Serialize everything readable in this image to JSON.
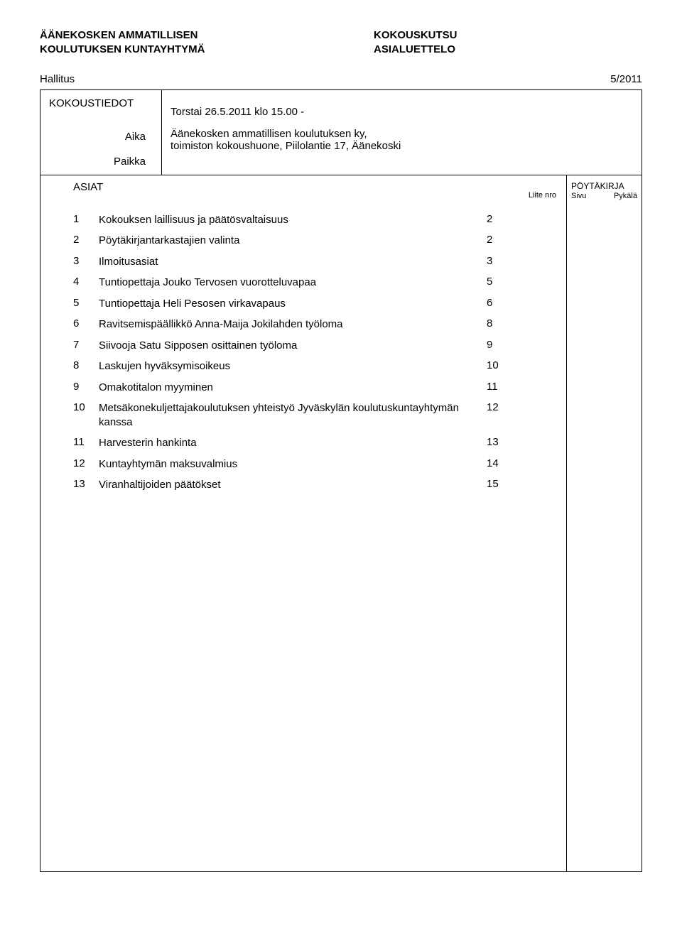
{
  "header": {
    "org_line1": "ÄÄNEKOSKEN AMMATILLISEN",
    "org_line2": "KOULUTUKSEN KUNTAYHTYMÄ",
    "doc_type_line1": "KOKOUSKUTSU",
    "doc_type_line2": "ASIALUETTELO"
  },
  "subhead": {
    "board": "Hallitus",
    "meeting_no": "5/2011"
  },
  "meeting": {
    "kokoustiedot_label": "KOKOUSTIEDOT",
    "aika_label": "Aika",
    "paikka_label": "Paikka",
    "aika_value": "Torstai 26.5.2011 klo 15.00 -",
    "paikka_value_line1": "Äänekosken ammatillisen koulutuksen ky,",
    "paikka_value_line2": "toimiston kokoushuone, Piilolantie 17, Äänekoski"
  },
  "columns": {
    "asiat": "ASIAT",
    "liite_nro": "Liite nro",
    "poytakirja": "PÖYTÄKIRJA",
    "sivu": "Sivu",
    "pykala": "Pykälä"
  },
  "items": [
    {
      "num": "1",
      "text": "Kokouksen laillisuus ja päätösvaltaisuus",
      "page": "2"
    },
    {
      "num": "2",
      "text": "Pöytäkirjantarkastajien valinta",
      "page": "2"
    },
    {
      "num": "3",
      "text": "Ilmoitusasiat",
      "page": "3"
    },
    {
      "num": "4",
      "text": "Tuntiopettaja Jouko Tervosen vuorotteluvapaa",
      "page": "5"
    },
    {
      "num": "5",
      "text": "Tuntiopettaja Heli Pesosen virkavapaus",
      "page": "6"
    },
    {
      "num": "6",
      "text": "Ravitsemispäällikkö Anna-Maija Jokilahden työloma",
      "page": "8"
    },
    {
      "num": "7",
      "text": "Siivooja Satu Sipposen osittainen työloma",
      "page": "9"
    },
    {
      "num": "8",
      "text": "Laskujen hyväksymisoikeus",
      "page": "10"
    },
    {
      "num": "9",
      "text": "Omakotitalon myyminen",
      "page": "11"
    },
    {
      "num": "10",
      "text": "Metsäkonekuljettajakoulutuksen yhteistyö Jyväskylän koulutuskuntayhtymän kanssa",
      "page": "12"
    },
    {
      "num": "11",
      "text": "Harvesterin hankinta",
      "page": "13"
    },
    {
      "num": "12",
      "text": "Kuntayhtymän maksuvalmius",
      "page": "14"
    },
    {
      "num": "13",
      "text": "Viranhaltijoiden päätökset",
      "page": "15"
    }
  ]
}
